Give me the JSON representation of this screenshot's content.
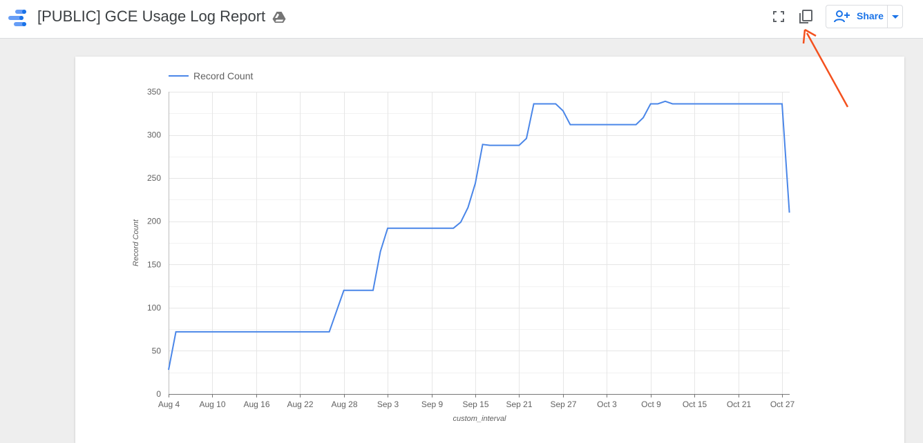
{
  "report": {
    "title": "[PUBLIC] GCE Usage Log Report"
  },
  "toolbar": {
    "share_label": "Share"
  },
  "icons": {
    "logo": "data-studio-logo",
    "drive": "google-drive-icon",
    "fullscreen": "fullscreen-icon",
    "copy": "copy-report-icon",
    "share": "person-add-icon",
    "dropdown": "caret-down-icon"
  },
  "colors": {
    "accent": "#1a73e8",
    "series": "#4a86e8",
    "annotation": "#f4511e"
  },
  "chart_data": {
    "type": "line",
    "legend": "Record Count",
    "legend_position": "top-left",
    "xlabel": "custom_interval",
    "ylabel": "Record Count",
    "ylim": [
      0,
      350
    ],
    "yticks": [
      0,
      50,
      100,
      150,
      200,
      250,
      300,
      350
    ],
    "xticks": [
      "Aug 4",
      "Aug 10",
      "Aug 16",
      "Aug 22",
      "Aug 28",
      "Sep 3",
      "Sep 9",
      "Sep 15",
      "Sep 21",
      "Sep 27",
      "Oct 3",
      "Oct 9",
      "Oct 15",
      "Oct 21",
      "Oct 27"
    ],
    "grid": true,
    "x_start_date": "Aug 4",
    "x_end_date": "Oct 27",
    "series": [
      {
        "name": "Record Count",
        "points": [
          [
            "Aug 4",
            28
          ],
          [
            "Aug 5",
            72
          ],
          [
            "Aug 6",
            72
          ],
          [
            "Aug 7",
            72
          ],
          [
            "Aug 8",
            72
          ],
          [
            "Aug 9",
            72
          ],
          [
            "Aug 10",
            72
          ],
          [
            "Aug 11",
            72
          ],
          [
            "Aug 12",
            72
          ],
          [
            "Aug 13",
            72
          ],
          [
            "Aug 14",
            72
          ],
          [
            "Aug 15",
            72
          ],
          [
            "Aug 16",
            72
          ],
          [
            "Aug 17",
            72
          ],
          [
            "Aug 18",
            72
          ],
          [
            "Aug 19",
            72
          ],
          [
            "Aug 20",
            72
          ],
          [
            "Aug 21",
            72
          ],
          [
            "Aug 22",
            72
          ],
          [
            "Aug 23",
            72
          ],
          [
            "Aug 24",
            72
          ],
          [
            "Aug 25",
            72
          ],
          [
            "Aug 26",
            72
          ],
          [
            "Aug 27",
            96
          ],
          [
            "Aug 28",
            120
          ],
          [
            "Aug 29",
            120
          ],
          [
            "Aug 30",
            120
          ],
          [
            "Aug 31",
            120
          ],
          [
            "Sep 1",
            120
          ],
          [
            "Sep 2",
            165
          ],
          [
            "Sep 3",
            192
          ],
          [
            "Sep 4",
            192
          ],
          [
            "Sep 5",
            192
          ],
          [
            "Sep 6",
            192
          ],
          [
            "Sep 7",
            192
          ],
          [
            "Sep 8",
            192
          ],
          [
            "Sep 9",
            192
          ],
          [
            "Sep 10",
            192
          ],
          [
            "Sep 11",
            192
          ],
          [
            "Sep 12",
            192
          ],
          [
            "Sep 13",
            199
          ],
          [
            "Sep 14",
            216
          ],
          [
            "Sep 15",
            244
          ],
          [
            "Sep 16",
            289
          ],
          [
            "Sep 17",
            288
          ],
          [
            "Sep 18",
            288
          ],
          [
            "Sep 19",
            288
          ],
          [
            "Sep 20",
            288
          ],
          [
            "Sep 21",
            288
          ],
          [
            "Sep 22",
            296
          ],
          [
            "Sep 23",
            336
          ],
          [
            "Sep 24",
            336
          ],
          [
            "Sep 25",
            336
          ],
          [
            "Sep 26",
            336
          ],
          [
            "Sep 27",
            328
          ],
          [
            "Sep 28",
            312
          ],
          [
            "Sep 29",
            312
          ],
          [
            "Sep 30",
            312
          ],
          [
            "Oct 1",
            312
          ],
          [
            "Oct 2",
            312
          ],
          [
            "Oct 3",
            312
          ],
          [
            "Oct 4",
            312
          ],
          [
            "Oct 5",
            312
          ],
          [
            "Oct 6",
            312
          ],
          [
            "Oct 7",
            312
          ],
          [
            "Oct 8",
            320
          ],
          [
            "Oct 9",
            336
          ],
          [
            "Oct 10",
            336
          ],
          [
            "Oct 11",
            339
          ],
          [
            "Oct 12",
            336
          ],
          [
            "Oct 13",
            336
          ],
          [
            "Oct 14",
            336
          ],
          [
            "Oct 15",
            336
          ],
          [
            "Oct 16",
            336
          ],
          [
            "Oct 17",
            336
          ],
          [
            "Oct 18",
            336
          ],
          [
            "Oct 19",
            336
          ],
          [
            "Oct 20",
            336
          ],
          [
            "Oct 21",
            336
          ],
          [
            "Oct 22",
            336
          ],
          [
            "Oct 23",
            336
          ],
          [
            "Oct 24",
            336
          ],
          [
            "Oct 25",
            336
          ],
          [
            "Oct 26",
            336
          ],
          [
            "Oct 27",
            336
          ],
          [
            "Oct 28",
            210
          ]
        ]
      }
    ]
  }
}
